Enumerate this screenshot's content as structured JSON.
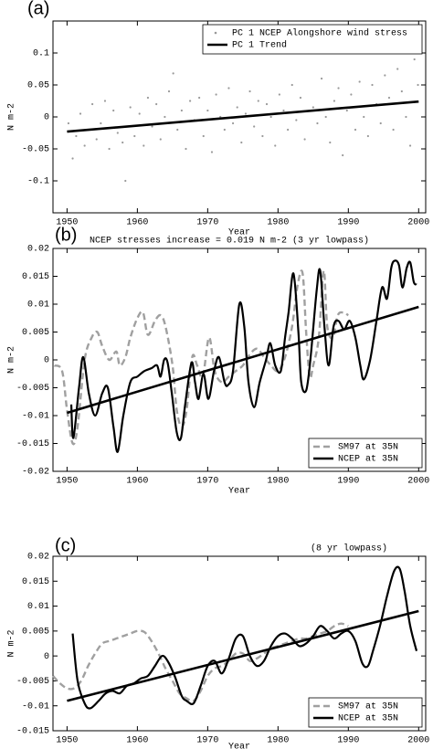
{
  "chart_data": [
    {
      "type": "line",
      "label": "(a)",
      "xlabel": "Year",
      "ylabel": "N m-2",
      "legend": "upper right",
      "xlim": [
        1948,
        2001
      ],
      "xticks": [
        1950,
        1960,
        1970,
        1980,
        1990,
        2000
      ],
      "ylim": [
        -0.15,
        0.15
      ],
      "yticks": [
        -0.1,
        -0.05,
        0,
        0.05,
        0.1
      ],
      "series": [
        {
          "name": "PC 1 NCEP Alongshore wind stress",
          "color": "#999999",
          "style": "dots",
          "x": [
            1950.2,
            1950.8,
            1951.3,
            1951.9,
            1952.5,
            1953.1,
            1953.6,
            1954.2,
            1954.8,
            1955.4,
            1956,
            1956.6,
            1957.2,
            1957.9,
            1958.3,
            1959,
            1959.6,
            1960.3,
            1960.9,
            1961.5,
            1962.1,
            1962.7,
            1963.3,
            1963.9,
            1964.5,
            1965.1,
            1965.7,
            1966.3,
            1966.9,
            1967.5,
            1968.1,
            1968.8,
            1969.4,
            1970,
            1970.6,
            1971.2,
            1971.8,
            1972.4,
            1973,
            1973.6,
            1974.2,
            1974.8,
            1975.4,
            1976,
            1976.6,
            1977.2,
            1977.8,
            1978.4,
            1979,
            1979.6,
            1980.2,
            1980.8,
            1981.4,
            1982,
            1982.6,
            1983.2,
            1983.8,
            1984.3,
            1985,
            1985.6,
            1986.2,
            1986.8,
            1987.4,
            1988,
            1988.6,
            1989.2,
            1989.8,
            1990.4,
            1991,
            1991.6,
            1992.2,
            1992.8,
            1993.4,
            1994,
            1994.6,
            1995.2,
            1995.8,
            1996.4,
            1997,
            1997.6,
            1998.2,
            1998.8,
            1999.4,
            1999.9
          ],
          "values": [
            -0.01,
            -0.065,
            -0.03,
            0.005,
            -0.045,
            -0.02,
            0.02,
            -0.035,
            -0.01,
            0.025,
            -0.05,
            0.01,
            -0.025,
            -0.04,
            -0.1,
            0.015,
            -0.03,
            0.005,
            -0.045,
            0.03,
            -0.015,
            0.02,
            -0.035,
            0.0,
            0.04,
            0.068,
            -0.02,
            0.01,
            -0.05,
            0.025,
            -0.005,
            0.03,
            -0.03,
            0.01,
            -0.055,
            0.035,
            0.0,
            -0.02,
            0.045,
            -0.01,
            0.015,
            -0.04,
            0.005,
            0.04,
            -0.015,
            0.025,
            -0.03,
            0.02,
            0.0,
            -0.045,
            0.035,
            0.01,
            -0.02,
            0.05,
            -0.005,
            0.03,
            -0.035,
            0.1,
            0.015,
            -0.01,
            0.06,
            0.0,
            -0.04,
            0.025,
            0.045,
            -0.06,
            0.01,
            0.035,
            -0.02,
            0.055,
            0.0,
            -0.03,
            0.05,
            0.02,
            -0.01,
            0.065,
            0.03,
            -0.02,
            0.075,
            0.04,
            0.0,
            -0.045,
            0.09,
            0.05
          ]
        },
        {
          "name": "PC 1 Trend",
          "color": "#000000",
          "style": "solid",
          "x": [
            1950,
            2000
          ],
          "values": [
            -0.023,
            0.024
          ]
        }
      ]
    },
    {
      "type": "line",
      "label": "(b)",
      "title": "NCEP stresses increase = 0.019 N m-2   (3 yr lowpass)",
      "xlabel": "Year",
      "ylabel": "N m-2",
      "legend": "lower right",
      "xlim": [
        1948,
        2001
      ],
      "xticks": [
        1950,
        1960,
        1970,
        1980,
        1990,
        2000
      ],
      "ylim": [
        -0.02,
        0.02
      ],
      "yticks": [
        -0.02,
        -0.015,
        -0.01,
        -0.005,
        0,
        0.005,
        0.01,
        0.015,
        0.02
      ],
      "series": [
        {
          "name": "SM97 at 35N",
          "color": "#a0a0a0",
          "style": "dashed",
          "x": [
            1948.2,
            1949.3,
            1950,
            1950.8,
            1951.5,
            1952.5,
            1953.5,
            1954.3,
            1955,
            1956,
            1957,
            1957.5,
            1958.3,
            1959,
            1960,
            1960.8,
            1961.5,
            1962.5,
            1963.3,
            1964,
            1965,
            1965.6,
            1966.3,
            1967,
            1967.8,
            1968.5,
            1969.3,
            1970.2,
            1971,
            1972,
            1973,
            1974,
            1975,
            1976,
            1977,
            1978,
            1979,
            1980,
            1981,
            1982,
            1982.8,
            1983.5,
            1984,
            1984.5,
            1985,
            1985.8,
            1986.5,
            1987,
            1987.8,
            1988.5,
            1989.3,
            1990
          ],
          "values": [
            -0.001,
            -0.002,
            -0.009,
            -0.015,
            -0.012,
            0.0,
            0.004,
            0.005,
            0.0025,
            0.0,
            0.0015,
            -0.001,
            0.0005,
            0.004,
            0.0075,
            0.0085,
            0.0045,
            0.007,
            0.008,
            0.006,
            -0.001,
            -0.009,
            -0.012,
            -0.009,
            0.0005,
            -0.001,
            -0.003,
            0.004,
            -0.002,
            -0.004,
            -0.003,
            -0.002,
            -0.001,
            0.001,
            0.002,
            0.0005,
            -0.001,
            -0.002,
            0.0005,
            0.006,
            0.0135,
            0.0155,
            0.005,
            -0.003,
            -0.001,
            0.004,
            0.016,
            0.006,
            0.004,
            0.008,
            0.0085,
            0.008
          ]
        },
        {
          "name": "NCEP at 35N",
          "color": "#000000",
          "style": "solid",
          "x": [
            1950.6,
            1950.9,
            1951.7,
            1952.3,
            1953.1,
            1954,
            1955,
            1955.8,
            1956.6,
            1957.2,
            1958,
            1959,
            1960,
            1961,
            1962,
            1962.8,
            1963.3,
            1963.8,
            1964.3,
            1964.9,
            1965.6,
            1966.2,
            1966.8,
            1967.7,
            1968.2,
            1968.7,
            1969.4,
            1970.1,
            1970.9,
            1971.6,
            1972.4,
            1972.9,
            1973.6,
            1974.5,
            1975.2,
            1975.8,
            1976.6,
            1977.4,
            1978.3,
            1978.9,
            1979.6,
            1980.4,
            1981,
            1981.5,
            1982.2,
            1982.9,
            1983.3,
            1984,
            1984.6,
            1985.5,
            1986,
            1986.6,
            1987.2,
            1987.9,
            1988.6,
            1989.4,
            1990.2,
            1991,
            1991.7,
            1992.2,
            1993.1,
            1994,
            1994.8,
            1995.5,
            1996.1,
            1996.6,
            1997.2,
            1997.7,
            1998.3,
            1998.8,
            1999.3,
            1999.7
          ],
          "values": [
            -0.008,
            -0.014,
            -0.005,
            0.0005,
            -0.006,
            -0.01,
            -0.006,
            -0.005,
            -0.012,
            -0.0165,
            -0.01,
            -0.004,
            -0.003,
            -0.002,
            -0.0015,
            -0.001,
            -0.003,
            0.0,
            -0.0005,
            -0.006,
            -0.013,
            -0.014,
            -0.008,
            -0.0005,
            -0.004,
            -0.007,
            -0.0025,
            -0.007,
            -0.002,
            0.0005,
            -0.004,
            -0.0045,
            -0.002,
            0.01,
            0.006,
            -0.004,
            -0.0085,
            -0.004,
            0.0,
            0.003,
            -0.001,
            -0.002,
            0.004,
            0.0085,
            0.0155,
            0.005,
            -0.004,
            -0.0055,
            0.0,
            0.0125,
            0.016,
            0.006,
            -0.001,
            0.006,
            0.007,
            0.0055,
            0.007,
            0.004,
            -0.001,
            -0.0035,
            0.0,
            0.007,
            0.013,
            0.011,
            0.0165,
            0.0178,
            0.017,
            0.013,
            0.0165,
            0.0175,
            0.014,
            0.0135
          ]
        },
        {
          "color": "#000000",
          "style": "solid",
          "x": [
            1950,
            2000
          ],
          "values": [
            -0.0095,
            0.0095
          ]
        }
      ]
    },
    {
      "type": "line",
      "label": "(c)",
      "title": "(8 yr lowpass)",
      "xlabel": "Year",
      "ylabel": "N m-2",
      "legend": "lower right",
      "xlim": [
        1948,
        2001
      ],
      "xticks": [
        1950,
        1960,
        1970,
        1980,
        1990,
        2000
      ],
      "ylim": [
        -0.015,
        0.02
      ],
      "yticks": [
        -0.015,
        -0.01,
        -0.005,
        0,
        0.005,
        0.01,
        0.015,
        0.02
      ],
      "series": [
        {
          "name": "SM97 at 35N",
          "color": "#a0a0a0",
          "style": "dashed",
          "x": [
            1948,
            1949,
            1950,
            1951,
            1952,
            1953,
            1954,
            1955,
            1956,
            1957,
            1958,
            1959,
            1960,
            1961,
            1962,
            1963,
            1964,
            1965,
            1966,
            1967,
            1968,
            1969,
            1970,
            1971,
            1972,
            1973,
            1974,
            1975,
            1976,
            1977,
            1978,
            1979,
            1980,
            1981,
            1982,
            1983,
            1984,
            1985,
            1986,
            1987,
            1988,
            1989,
            1990
          ],
          "values": [
            -0.004,
            -0.0055,
            -0.0065,
            -0.0065,
            -0.005,
            -0.002,
            0.0005,
            0.0025,
            0.003,
            0.0035,
            0.004,
            0.0045,
            0.005,
            0.0048,
            0.003,
            0.0005,
            -0.0025,
            -0.005,
            -0.0075,
            -0.0085,
            -0.009,
            -0.007,
            -0.004,
            -0.0025,
            -0.002,
            -0.001,
            0.0005,
            0.0005,
            -0.001,
            -0.0005,
            0.0005,
            0.0015,
            0.002,
            0.0025,
            0.003,
            0.0035,
            0.0035,
            0.004,
            0.0045,
            0.005,
            0.006,
            0.0065,
            0.006
          ]
        },
        {
          "name": "NCEP at 35N",
          "color": "#000000",
          "style": "solid",
          "x": [
            1950.8,
            1951.5,
            1952.5,
            1953.3,
            1954.5,
            1955.5,
            1956.5,
            1957.5,
            1958.5,
            1959.5,
            1960.5,
            1961.5,
            1962.5,
            1963.5,
            1964.3,
            1965.3,
            1966.3,
            1967,
            1968,
            1969,
            1970,
            1971,
            1972,
            1973,
            1974,
            1975,
            1976,
            1977,
            1978,
            1979,
            1980,
            1981,
            1982,
            1983,
            1984,
            1985,
            1986,
            1987,
            1988,
            1989,
            1990,
            1991,
            1992,
            1992.8,
            1993.5,
            1994.5,
            1995.5,
            1996.5,
            1997.3,
            1998,
            1998.8,
            1999.7
          ],
          "values": [
            0.0045,
            -0.005,
            -0.0095,
            -0.0105,
            -0.009,
            -0.0075,
            -0.007,
            -0.0075,
            -0.006,
            -0.0055,
            -0.0045,
            -0.004,
            -0.002,
            0.0,
            -0.001,
            -0.004,
            -0.008,
            -0.009,
            -0.0095,
            -0.006,
            -0.002,
            -0.001,
            -0.0035,
            -0.0005,
            0.0035,
            0.004,
            0.0,
            -0.002,
            -0.001,
            0.002,
            0.004,
            0.0045,
            0.0035,
            0.002,
            0.0025,
            0.004,
            0.006,
            0.005,
            0.0035,
            0.0045,
            0.005,
            0.003,
            -0.0015,
            -0.002,
            0.001,
            0.006,
            0.012,
            0.017,
            0.0175,
            0.013,
            0.006,
            0.001
          ]
        },
        {
          "color": "#000000",
          "style": "solid",
          "x": [
            1950,
            2000
          ],
          "values": [
            -0.009,
            0.009
          ]
        }
      ]
    }
  ]
}
